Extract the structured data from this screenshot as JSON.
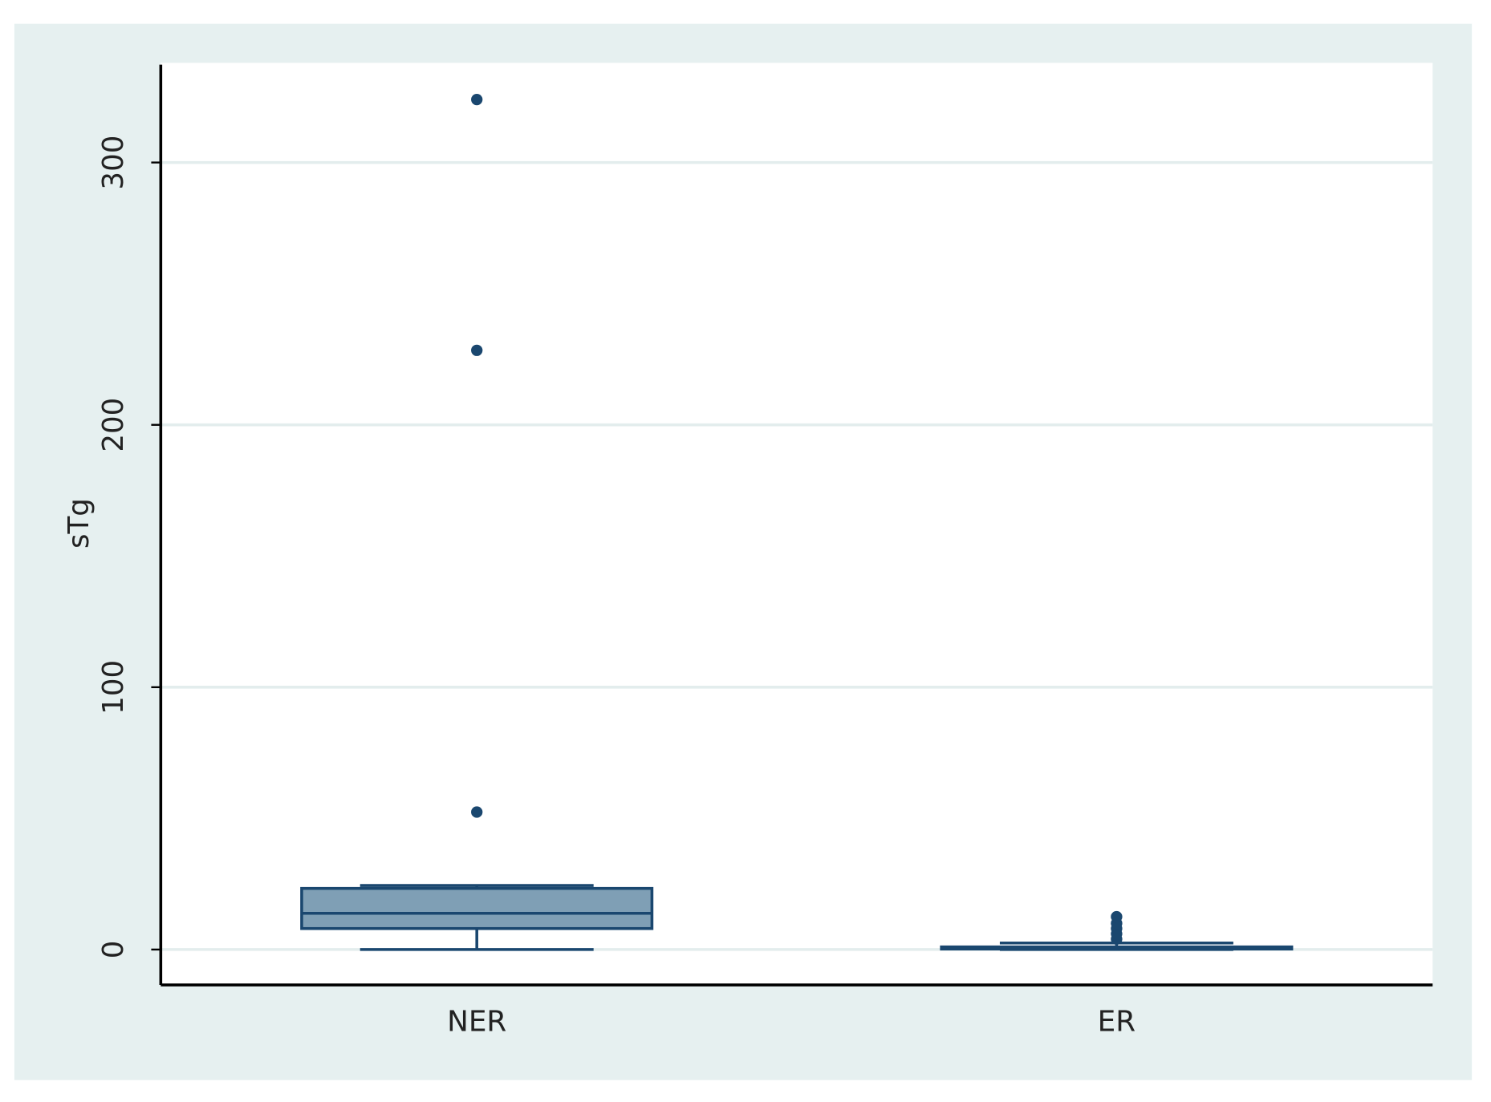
{
  "chart_data": {
    "type": "box",
    "y_label": "sTg",
    "categories": [
      "NER",
      "ER"
    ],
    "boxes": [
      {
        "min": 0,
        "q1": 8,
        "median": 13.8,
        "q3": 23.3,
        "max": 24.4,
        "outliers": [
          52.4,
          228.4,
          324
        ]
      },
      {
        "min": 0,
        "q1": 0.2,
        "median": 0.5,
        "q3": 1,
        "max": 2.5,
        "outliers": [
          4,
          6,
          8,
          10,
          12.5
        ]
      }
    ],
    "color": "#1a476f",
    "box_fill": "#7f9fb5",
    "ylim": [
      -13.5,
      338
    ],
    "yticks": [
      0,
      100,
      200,
      300
    ],
    "grid": true
  }
}
